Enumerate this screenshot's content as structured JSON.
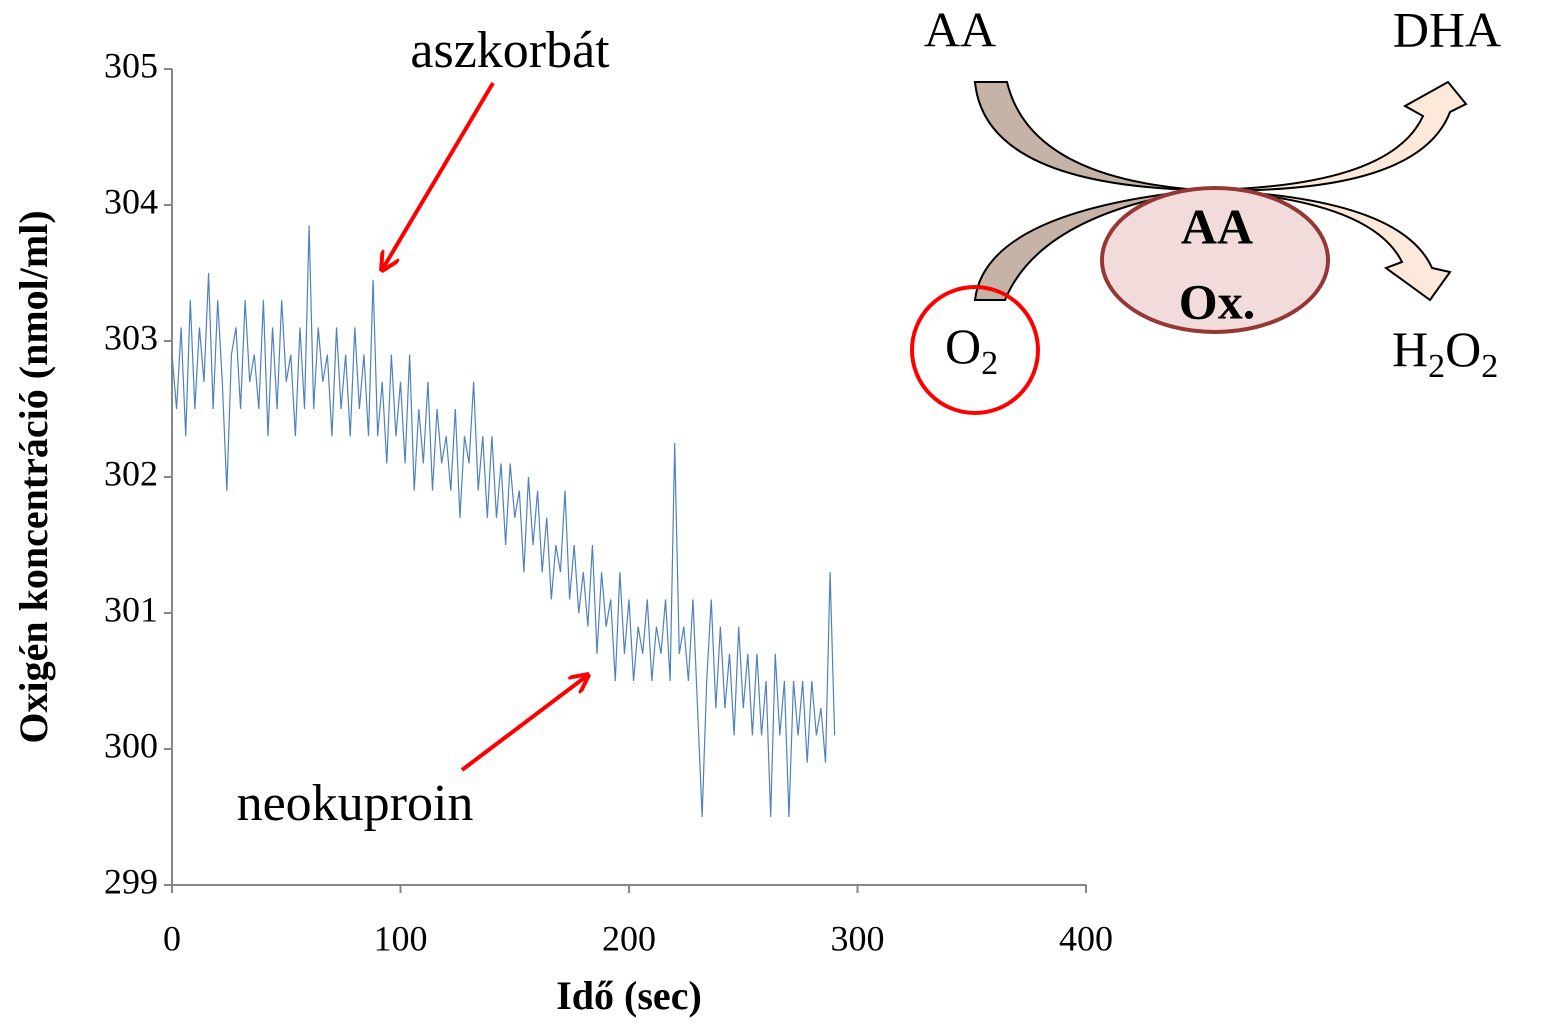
{
  "chart_data": {
    "type": "line",
    "x_label": "Idő (sec)",
    "y_label": "Oxigén koncentráció (nmol/ml)",
    "annotations": [
      "aszkorbát",
      "neokuproin"
    ],
    "color": "#4f81bd",
    "xlim": [
      0,
      400
    ],
    "xticks": [
      0,
      100,
      200,
      300,
      400
    ],
    "ylim": [
      299,
      305
    ],
    "yticks": [
      299,
      300,
      301,
      302,
      303,
      304,
      305
    ],
    "x": [
      0,
      2,
      4,
      6,
      8,
      10,
      12,
      14,
      16,
      18,
      20,
      22,
      24,
      26,
      28,
      30,
      32,
      34,
      36,
      38,
      40,
      42,
      44,
      46,
      48,
      50,
      52,
      54,
      56,
      58,
      60,
      62,
      64,
      66,
      68,
      70,
      72,
      74,
      76,
      78,
      80,
      82,
      84,
      86,
      88,
      90,
      92,
      94,
      96,
      98,
      100,
      102,
      104,
      106,
      108,
      110,
      112,
      114,
      116,
      118,
      120,
      122,
      124,
      126,
      128,
      130,
      132,
      134,
      136,
      138,
      140,
      142,
      144,
      146,
      148,
      150,
      152,
      154,
      156,
      158,
      160,
      162,
      164,
      166,
      168,
      170,
      172,
      174,
      176,
      178,
      180,
      182,
      184,
      186,
      188,
      190,
      192,
      194,
      196,
      198,
      200,
      202,
      204,
      206,
      208,
      210,
      212,
      214,
      216,
      218,
      220,
      222,
      224,
      226,
      228,
      230,
      232,
      234,
      236,
      238,
      240,
      242,
      244,
      246,
      248,
      250,
      252,
      254,
      256,
      258,
      260,
      262,
      264,
      266,
      268,
      270,
      272,
      274,
      276,
      278,
      280,
      282,
      284,
      286,
      288,
      290
    ],
    "values": [
      302.9,
      302.5,
      303.1,
      302.3,
      303.3,
      302.5,
      303.1,
      302.7,
      303.5,
      302.5,
      303.3,
      302.7,
      301.9,
      302.9,
      303.1,
      302.5,
      303.3,
      302.7,
      302.9,
      302.5,
      303.3,
      302.3,
      303.1,
      302.5,
      303.3,
      302.7,
      302.9,
      302.3,
      303.1,
      302.5,
      303.85,
      302.5,
      303.1,
      302.7,
      302.9,
      302.3,
      303.1,
      302.5,
      302.9,
      302.3,
      303.1,
      302.5,
      302.9,
      302.3,
      303.45,
      302.3,
      302.7,
      302.1,
      302.9,
      302.3,
      302.7,
      302.1,
      302.9,
      301.9,
      302.5,
      302.1,
      302.7,
      301.9,
      302.5,
      302.1,
      302.3,
      301.9,
      302.5,
      301.7,
      302.3,
      302.1,
      302.7,
      301.9,
      302.3,
      301.7,
      302.3,
      301.7,
      302.1,
      301.5,
      302.1,
      301.7,
      301.9,
      301.3,
      302.0,
      301.5,
      301.9,
      301.3,
      301.7,
      301.1,
      301.5,
      301.3,
      301.9,
      301.1,
      301.5,
      301.0,
      301.3,
      300.9,
      301.5,
      300.7,
      301.3,
      300.9,
      301.1,
      300.5,
      301.3,
      300.7,
      301.1,
      300.5,
      300.9,
      300.7,
      301.1,
      300.5,
      300.9,
      300.7,
      301.1,
      300.5,
      302.25,
      300.7,
      300.9,
      300.5,
      301.1,
      300.3,
      299.5,
      300.5,
      301.1,
      300.3,
      300.9,
      300.3,
      300.7,
      300.1,
      300.9,
      300.3,
      300.7,
      300.1,
      300.7,
      300.1,
      300.5,
      299.5,
      300.7,
      300.1,
      300.5,
      299.5,
      300.5,
      300.1,
      300.5,
      299.9,
      300.5,
      300.1,
      300.3,
      299.9,
      301.3,
      300.1
    ]
  },
  "diagram": {
    "substrate": "AA",
    "product": "DHA",
    "enzyme": [
      "AA",
      "Ox."
    ],
    "oxygen": [
      "O",
      "2"
    ],
    "peroxide": [
      "H",
      "2",
      "O",
      "2"
    ]
  }
}
